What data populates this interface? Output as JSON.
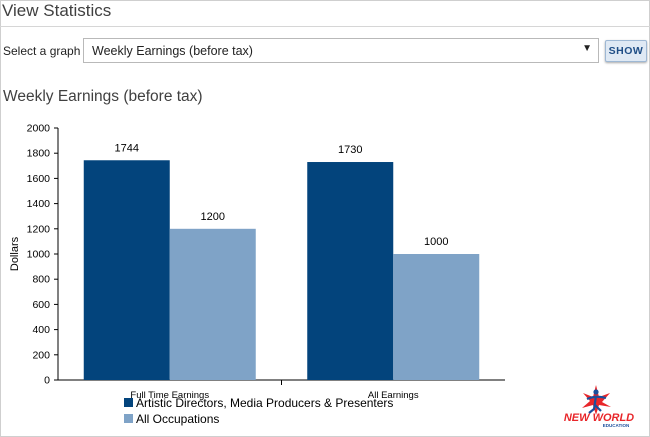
{
  "page": {
    "title": "View Statistics",
    "select_label": "Select a graph",
    "selected_graph": "Weekly Earnings (before tax)",
    "show_button": "SHOW",
    "chart_heading": "Weekly Earnings (before tax)"
  },
  "logo": {
    "line1": "NEW WORLD",
    "line2": "EDUCATION"
  },
  "colors": {
    "series_dark": "#03447c",
    "series_light": "#7fa3c7",
    "logo_red": "#e8262a",
    "logo_blue": "#1b4f9c"
  },
  "chart_data": {
    "type": "bar",
    "title": "",
    "xlabel": "",
    "ylabel": "Dollars",
    "ylim": [
      0,
      2000
    ],
    "yticks": [
      0,
      200,
      400,
      600,
      800,
      1000,
      1200,
      1400,
      1600,
      1800,
      2000
    ],
    "categories": [
      "Full Time Earnings",
      "All Earnings"
    ],
    "series": [
      {
        "name": "Artistic Directors, Media Producers & Presenters",
        "values": [
          1744,
          1730
        ],
        "color": "#03447c"
      },
      {
        "name": "All Occupations",
        "values": [
          1200,
          1000
        ],
        "color": "#7fa3c7"
      }
    ],
    "grid": false,
    "legend_position": "bottom-left"
  }
}
